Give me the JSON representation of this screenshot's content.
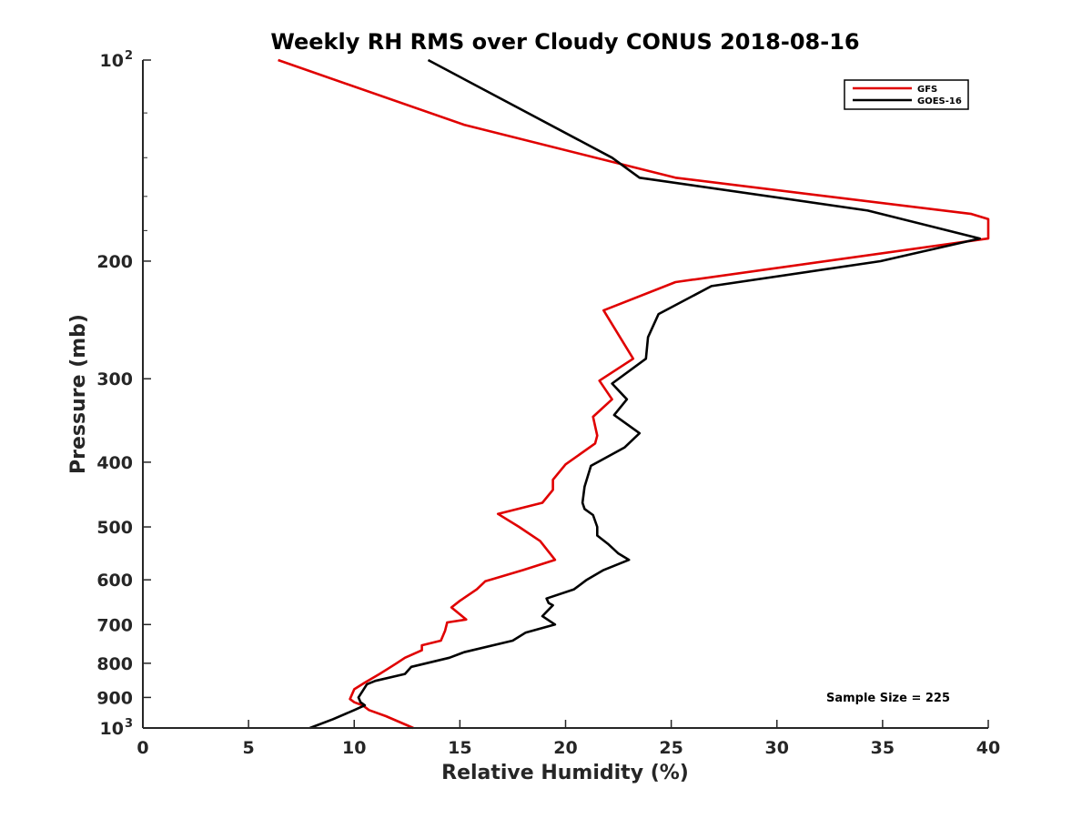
{
  "chart_data": {
    "type": "line",
    "title": "Weekly RH RMS over Cloudy CONUS 2018-08-16",
    "xlabel": "Relative Humidity (%)",
    "ylabel": "Pressure (mb)",
    "xlim": [
      0,
      40
    ],
    "ylim": [
      100,
      1000
    ],
    "y_scale": "log",
    "y_reversed": true,
    "grid": false,
    "legend_position": "top-right",
    "x_ticks": [
      0,
      5,
      10,
      15,
      20,
      25,
      30,
      35,
      40
    ],
    "y_ticks": [
      {
        "value": 100,
        "label": "10",
        "exp": "2"
      },
      {
        "value": 200,
        "label": "200"
      },
      {
        "value": 300,
        "label": "300"
      },
      {
        "value": 400,
        "label": "400"
      },
      {
        "value": 500,
        "label": "500"
      },
      {
        "value": 600,
        "label": "600"
      },
      {
        "value": 700,
        "label": "700"
      },
      {
        "value": 800,
        "label": "800"
      },
      {
        "value": 900,
        "label": "900"
      },
      {
        "value": 1000,
        "label": "10",
        "exp": "3"
      }
    ],
    "annotation": "Sample Size = 225",
    "series": [
      {
        "name": "GFS",
        "color": "#e00000",
        "points": [
          [
            6.4,
            100
          ],
          [
            15.2,
            125
          ],
          [
            25.2,
            150
          ],
          [
            39.2,
            170
          ],
          [
            40.0,
            173
          ],
          [
            40.0,
            185
          ],
          [
            25.2,
            215
          ],
          [
            21.8,
            237
          ],
          [
            23.2,
            280
          ],
          [
            21.6,
            302
          ],
          [
            22.2,
            322
          ],
          [
            21.3,
            342
          ],
          [
            21.5,
            365
          ],
          [
            21.4,
            375
          ],
          [
            20.0,
            403
          ],
          [
            19.4,
            425
          ],
          [
            19.4,
            440
          ],
          [
            18.9,
            460
          ],
          [
            16.8,
            478
          ],
          [
            17.8,
            500
          ],
          [
            18.8,
            525
          ],
          [
            19.5,
            560
          ],
          [
            18.0,
            580
          ],
          [
            16.2,
            603
          ],
          [
            15.8,
            620
          ],
          [
            15.0,
            645
          ],
          [
            14.6,
            660
          ],
          [
            15.3,
            688
          ],
          [
            14.4,
            695
          ],
          [
            14.3,
            715
          ],
          [
            14.1,
            740
          ],
          [
            13.2,
            752
          ],
          [
            13.2,
            765
          ],
          [
            12.4,
            785
          ],
          [
            12.0,
            800
          ],
          [
            11.6,
            815
          ],
          [
            11.2,
            830
          ],
          [
            10.5,
            855
          ],
          [
            10.0,
            875
          ],
          [
            9.9,
            890
          ],
          [
            9.8,
            905
          ],
          [
            10.0,
            915
          ],
          [
            10.4,
            925
          ],
          [
            10.7,
            940
          ],
          [
            11.5,
            960
          ],
          [
            12.8,
            1000
          ]
        ]
      },
      {
        "name": "GOES-16",
        "color": "#000000",
        "points": [
          [
            13.5,
            100
          ],
          [
            22.2,
            140
          ],
          [
            23.5,
            150
          ],
          [
            34.3,
            168
          ],
          [
            39.6,
            185
          ],
          [
            34.9,
            200
          ],
          [
            26.9,
            218
          ],
          [
            24.4,
            240
          ],
          [
            23.9,
            260
          ],
          [
            23.8,
            280
          ],
          [
            22.2,
            305
          ],
          [
            22.9,
            322
          ],
          [
            22.3,
            340
          ],
          [
            23.5,
            362
          ],
          [
            22.8,
            380
          ],
          [
            21.2,
            405
          ],
          [
            20.9,
            435
          ],
          [
            20.8,
            460
          ],
          [
            20.9,
            470
          ],
          [
            21.3,
            480
          ],
          [
            21.5,
            500
          ],
          [
            21.5,
            515
          ],
          [
            22.0,
            530
          ],
          [
            22.5,
            548
          ],
          [
            23.0,
            560
          ],
          [
            21.8,
            580
          ],
          [
            21.0,
            600
          ],
          [
            20.4,
            620
          ],
          [
            19.1,
            640
          ],
          [
            19.2,
            650
          ],
          [
            19.4,
            655
          ],
          [
            19.1,
            670
          ],
          [
            18.9,
            680
          ],
          [
            19.5,
            700
          ],
          [
            18.1,
            720
          ],
          [
            17.5,
            740
          ],
          [
            15.2,
            770
          ],
          [
            14.5,
            785
          ],
          [
            12.7,
            810
          ],
          [
            12.4,
            830
          ],
          [
            11.0,
            850
          ],
          [
            10.6,
            860
          ],
          [
            10.4,
            880
          ],
          [
            10.2,
            900
          ],
          [
            10.3,
            915
          ],
          [
            10.5,
            925
          ],
          [
            10.0,
            940
          ],
          [
            9.0,
            970
          ],
          [
            7.9,
            1000
          ]
        ]
      }
    ]
  }
}
